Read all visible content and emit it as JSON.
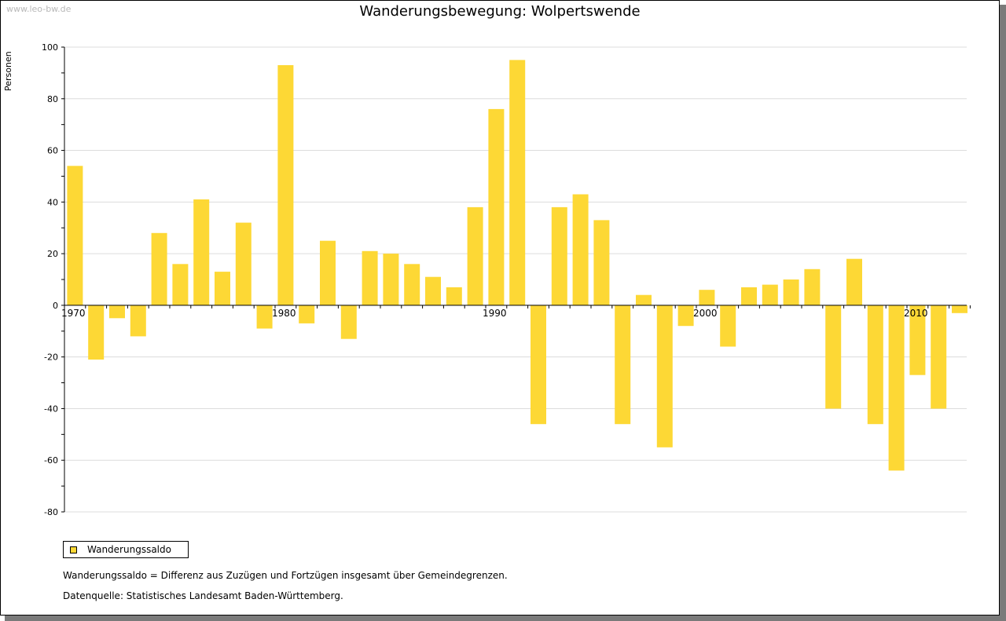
{
  "watermark": "www.leo-bw.de",
  "legend_label": "Wanderungssaldo",
  "footnote": "Wanderungssaldo = Differenz aus Zuzügen und Fortzügen insgesamt über Gemeindegrenzen.",
  "source": "Datenquelle: Statistisches Landesamt Baden-Württemberg.",
  "colors": {
    "bar": "#FDD835",
    "grid": "#dcdcdc",
    "axis": "#000000"
  },
  "chart_data": {
    "type": "bar",
    "title": "Wanderungsbewegung: Wolpertswende",
    "ylabel": "Personen",
    "xlabel": "",
    "ylim": [
      -80,
      100
    ],
    "y_ticks": [
      100,
      80,
      60,
      40,
      20,
      0,
      -20,
      -40,
      -60,
      -80
    ],
    "x_tick_labels": [
      "1970",
      "1980",
      "1990",
      "2000",
      "2010"
    ],
    "grid": true,
    "legend_position": "bottom-left",
    "x": [
      1970,
      1971,
      1972,
      1973,
      1974,
      1975,
      1976,
      1977,
      1978,
      1979,
      1980,
      1981,
      1982,
      1983,
      1984,
      1985,
      1986,
      1987,
      1988,
      1989,
      1990,
      1991,
      1992,
      1993,
      1994,
      1995,
      1996,
      1997,
      1998,
      1999,
      2000,
      2001,
      2002,
      2003,
      2004,
      2005,
      2006,
      2007,
      2008,
      2009,
      2010,
      2011,
      2012
    ],
    "series": [
      {
        "name": "Wanderungssaldo",
        "values": [
          54,
          -21,
          -5,
          -12,
          28,
          16,
          41,
          13,
          32,
          -9,
          93,
          -7,
          25,
          -13,
          21,
          20,
          16,
          11,
          7,
          38,
          76,
          95,
          -46,
          38,
          43,
          33,
          -46,
          4,
          -55,
          -8,
          6,
          -16,
          7,
          8,
          10,
          14,
          -40,
          18,
          -46,
          -64,
          -27,
          -40,
          -3
        ]
      }
    ]
  }
}
